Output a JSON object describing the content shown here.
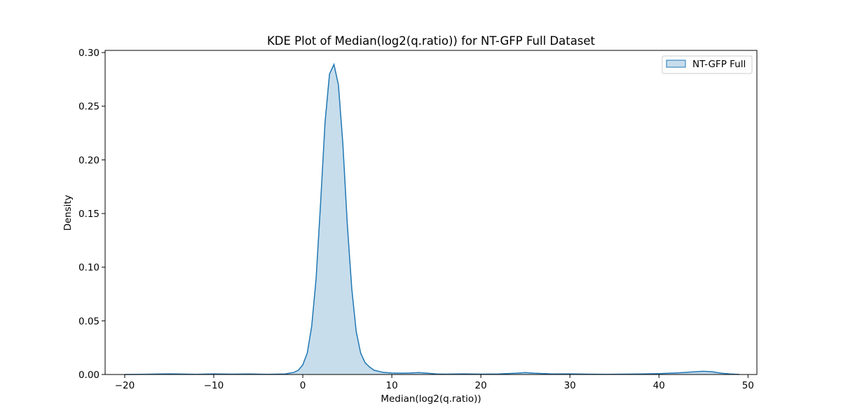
{
  "chart_data": {
    "type": "area",
    "title": "KDE Plot of Median(log2(q.ratio)) for NT-GFP Full Dataset",
    "xlabel": "Median(log2(q.ratio))",
    "ylabel": "Density",
    "xlim": [
      -22.2,
      51.0
    ],
    "ylim": [
      0.0,
      0.302
    ],
    "xticks": [
      -20,
      -10,
      0,
      10,
      20,
      30,
      40,
      50
    ],
    "yticks": [
      0.0,
      0.05,
      0.1,
      0.15,
      0.2,
      0.25,
      0.3
    ],
    "xtick_labels": [
      "−20",
      "−10",
      "0",
      "10",
      "20",
      "30",
      "40",
      "50"
    ],
    "ytick_labels": [
      "0.00",
      "0.05",
      "0.10",
      "0.15",
      "0.20",
      "0.25",
      "0.30"
    ],
    "grid": false,
    "legend": {
      "position": "top-right",
      "entries": [
        "NT-GFP Full"
      ]
    },
    "series": [
      {
        "name": "NT-GFP Full",
        "color": "#1f77b4",
        "fill_color": "#1f77b4",
        "fill_opacity": 0.25,
        "x": [
          -20,
          -18,
          -16,
          -15,
          -14,
          -12,
          -10,
          -8,
          -6,
          -4,
          -2,
          -1,
          -0.5,
          0,
          0.5,
          1,
          1.5,
          2,
          2.5,
          3,
          3.5,
          4,
          4.5,
          5,
          5.5,
          6,
          6.5,
          7,
          7.5,
          8,
          9,
          10,
          11,
          12,
          13,
          14,
          15,
          16,
          18,
          20,
          22,
          24,
          25,
          26,
          28,
          30,
          32,
          34,
          36,
          38,
          40,
          42,
          44,
          45,
          46,
          47,
          48,
          49
        ],
        "y": [
          0.0,
          0.0002,
          0.0005,
          0.0006,
          0.0005,
          0.0002,
          0.0006,
          0.0003,
          0.0005,
          0.0002,
          0.0005,
          0.002,
          0.004,
          0.009,
          0.02,
          0.045,
          0.09,
          0.16,
          0.235,
          0.28,
          0.289,
          0.27,
          0.215,
          0.14,
          0.08,
          0.04,
          0.02,
          0.011,
          0.007,
          0.004,
          0.002,
          0.0014,
          0.0012,
          0.0014,
          0.0018,
          0.0012,
          0.0005,
          0.0003,
          0.0006,
          0.0003,
          0.0005,
          0.0012,
          0.0018,
          0.0012,
          0.0005,
          0.0006,
          0.0003,
          0.0002,
          0.0003,
          0.0005,
          0.0008,
          0.0015,
          0.0025,
          0.003,
          0.0025,
          0.0012,
          0.0005,
          0.0001
        ]
      }
    ]
  }
}
